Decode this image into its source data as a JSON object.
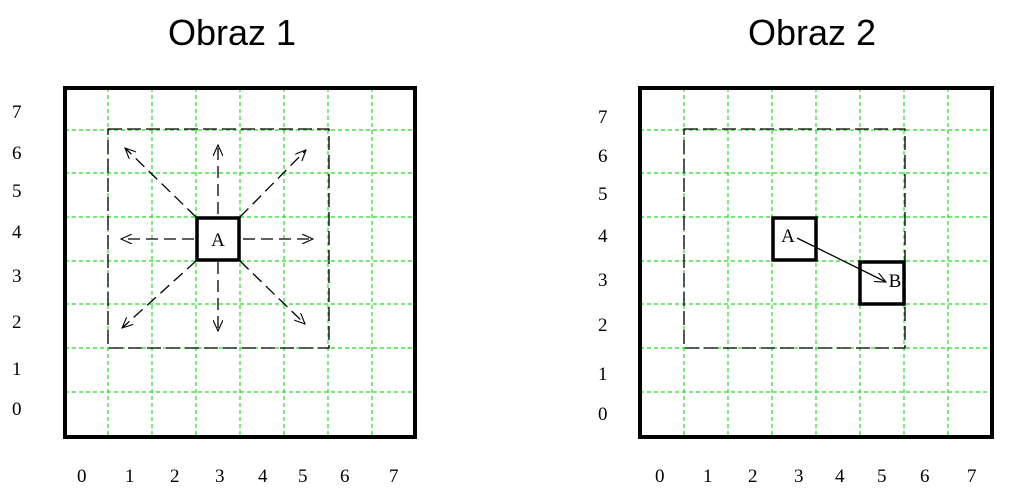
{
  "figures": [
    {
      "title": "Obraz 1",
      "x_labels": [
        "0",
        "1",
        "2",
        "3",
        "4",
        "5",
        "6",
        "7"
      ],
      "y_labels": [
        "7",
        "6",
        "5",
        "4",
        "3",
        "2",
        "1",
        "0"
      ],
      "cell_label": "A"
    },
    {
      "title": "Obraz 2",
      "x_labels": [
        "0",
        "1",
        "2",
        "3",
        "4",
        "5",
        "6",
        "7"
      ],
      "y_labels": [
        "7",
        "6",
        "5",
        "4",
        "3",
        "2",
        "1",
        "0"
      ],
      "cell_labels": [
        "A",
        "B"
      ]
    }
  ],
  "colors": {
    "grid": "#22dd22",
    "frame": "#000000",
    "dashed_box": "#000000"
  }
}
